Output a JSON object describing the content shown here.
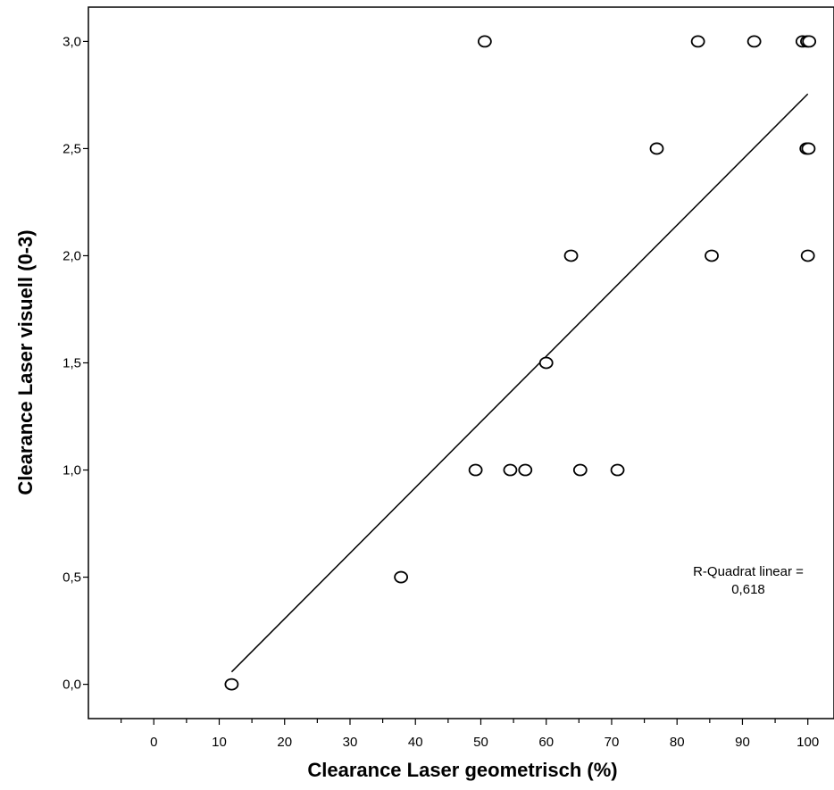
{
  "chart_data": {
    "type": "scatter",
    "xlabel": "Clearance Laser geometrisch (%)",
    "ylabel": "Clearance Laser visuell (0-3)",
    "xlim": [
      -10,
      104
    ],
    "ylim": [
      -0.16,
      3.16
    ],
    "x_ticks": [
      0,
      10,
      20,
      30,
      40,
      50,
      60,
      70,
      80,
      90,
      100
    ],
    "x_tick_labels": [
      "0",
      "10",
      "20",
      "30",
      "40",
      "50",
      "60",
      "70",
      "80",
      "90",
      "100"
    ],
    "y_ticks": [
      0,
      0.5,
      1,
      1.5,
      2,
      2.5,
      3
    ],
    "y_tick_labels": [
      "0,0",
      "0,5",
      "1,0",
      "1,5",
      "2,0",
      "2,5",
      "3,0"
    ],
    "grid": false,
    "points": [
      {
        "x": 11.9,
        "y": 0.0
      },
      {
        "x": 37.8,
        "y": 0.5
      },
      {
        "x": 49.2,
        "y": 1.0
      },
      {
        "x": 54.5,
        "y": 1.0
      },
      {
        "x": 56.8,
        "y": 1.0
      },
      {
        "x": 65.2,
        "y": 1.0
      },
      {
        "x": 70.9,
        "y": 1.0
      },
      {
        "x": 60.0,
        "y": 1.5
      },
      {
        "x": 63.8,
        "y": 2.0
      },
      {
        "x": 85.3,
        "y": 2.0
      },
      {
        "x": 100.0,
        "y": 2.0
      },
      {
        "x": 76.9,
        "y": 2.5
      },
      {
        "x": 99.8,
        "y": 2.5
      },
      {
        "x": 100.1,
        "y": 2.5
      },
      {
        "x": 50.6,
        "y": 3.0
      },
      {
        "x": 83.2,
        "y": 3.0
      },
      {
        "x": 91.8,
        "y": 3.0
      },
      {
        "x": 99.2,
        "y": 3.0
      },
      {
        "x": 99.9,
        "y": 3.0
      },
      {
        "x": 100.2,
        "y": 3.0
      }
    ],
    "fit_line": {
      "type": "linear",
      "x": [
        11.9,
        100
      ],
      "y": [
        0.058,
        2.755
      ]
    },
    "annotation": {
      "line1": "R-Quadrat linear =",
      "line2": "0,618"
    }
  },
  "colors": {
    "ink": "#000000",
    "background": "#ffffff",
    "marker_fill": "#ffffff"
  }
}
